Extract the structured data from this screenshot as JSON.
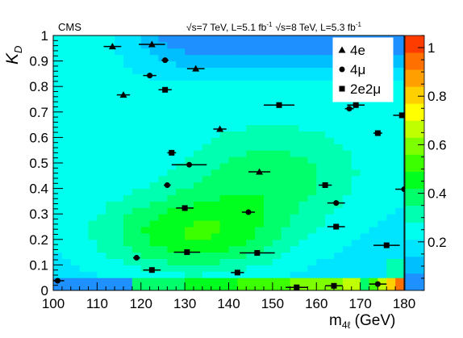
{
  "chart_data": {
    "type": "scatter",
    "header": {
      "experiment": "CMS",
      "energy_left": "√s=7 TeV, L=5.1 fb",
      "energy_right": "√s=8 TeV, L=5.3 fb",
      "lumi_unit_exp": "-1"
    },
    "xlabel": "m",
    "xlabel_sub": "4ℓ",
    "xlabel_unit": " (GeV)",
    "ylabel": "K",
    "ylabel_sub": "D",
    "xlim": [
      100,
      180
    ],
    "ylim": [
      0,
      1
    ],
    "x_ticks": [
      "100",
      "110",
      "120",
      "130",
      "140",
      "150",
      "160",
      "170",
      "180"
    ],
    "y_ticks": [
      "0",
      "0.1",
      "0.2",
      "0.3",
      "0.4",
      "0.5",
      "0.6",
      "0.7",
      "0.8",
      "0.9",
      "1"
    ],
    "z_ticks": [
      "0.2",
      "0.4",
      "0.6",
      "0.8",
      "1"
    ],
    "zlim": [
      0,
      1.05
    ],
    "palette": [
      "#1e90ff",
      "#00bfff",
      "#00e5ff",
      "#00ffee",
      "#00ffb0",
      "#00ff6a",
      "#00ff1e",
      "#3cff00",
      "#7dff00",
      "#c0ff00",
      "#ffff00",
      "#ffd000",
      "#ffa000",
      "#ff7000",
      "#ff3c00"
    ],
    "grid": false,
    "legend_position": "top-right",
    "series": [
      {
        "name": "4e",
        "marker": "triangle",
        "points": [
          {
            "x": 113.5,
            "y": 0.957,
            "xerr": 2.0
          },
          {
            "x": 116.0,
            "y": 0.767,
            "xerr": 1.5
          },
          {
            "x": 122.5,
            "y": 0.965,
            "xerr": 3.0
          },
          {
            "x": 132.5,
            "y": 0.87,
            "xerr": 2.0
          },
          {
            "x": 138.0,
            "y": 0.633,
            "xerr": 1.5
          },
          {
            "x": 147.0,
            "y": 0.465,
            "xerr": 2.5
          }
        ]
      },
      {
        "name": "4μ",
        "marker": "circle",
        "points": [
          {
            "x": 101.0,
            "y": 0.038,
            "xerr": 1.5
          },
          {
            "x": 119.0,
            "y": 0.128,
            "xerr": 0.8
          },
          {
            "x": 122.0,
            "y": 0.843,
            "xerr": 1.5
          },
          {
            "x": 125.5,
            "y": 0.903,
            "xerr": 0.8
          },
          {
            "x": 126.0,
            "y": 0.413,
            "xerr": 0.8
          },
          {
            "x": 131.0,
            "y": 0.493,
            "xerr": 4.0
          },
          {
            "x": 144.5,
            "y": 0.307,
            "xerr": 1.5
          },
          {
            "x": 164.5,
            "y": 0.343,
            "xerr": 2.0
          },
          {
            "x": 167.5,
            "y": 0.713,
            "xerr": 1.0
          },
          {
            "x": 174.0,
            "y": 0.025,
            "xerr": 2.0
          },
          {
            "x": 180.0,
            "y": 0.397,
            "xerr": 2.0
          }
        ]
      },
      {
        "name": "2e2μ",
        "marker": "square",
        "points": [
          {
            "x": 122.5,
            "y": 0.08,
            "xerr": 2.0
          },
          {
            "x": 125.5,
            "y": 0.787,
            "xerr": 1.5
          },
          {
            "x": 127.0,
            "y": 0.54,
            "xerr": 1.0
          },
          {
            "x": 130.0,
            "y": 0.323,
            "xerr": 2.0
          },
          {
            "x": 130.5,
            "y": 0.15,
            "xerr": 3.0
          },
          {
            "x": 142.0,
            "y": 0.07,
            "xerr": 1.5
          },
          {
            "x": 146.5,
            "y": 0.147,
            "xerr": 4.0
          },
          {
            "x": 151.5,
            "y": 0.727,
            "xerr": 3.5
          },
          {
            "x": 155.5,
            "y": 0.012,
            "xerr": 2.5
          },
          {
            "x": 162.0,
            "y": 0.413,
            "xerr": 1.5
          },
          {
            "x": 164.0,
            "y": 0.018,
            "xerr": 2.0
          },
          {
            "x": 164.5,
            "y": 0.25,
            "xerr": 2.0
          },
          {
            "x": 169.0,
            "y": 0.727,
            "xerr": 2.0
          },
          {
            "x": 174.0,
            "y": 0.617,
            "xerr": 1.0
          },
          {
            "x": 176.0,
            "y": 0.177,
            "xerr": 3.0
          },
          {
            "x": 179.5,
            "y": 0.687,
            "xerr": 2.0
          }
        ]
      }
    ]
  }
}
